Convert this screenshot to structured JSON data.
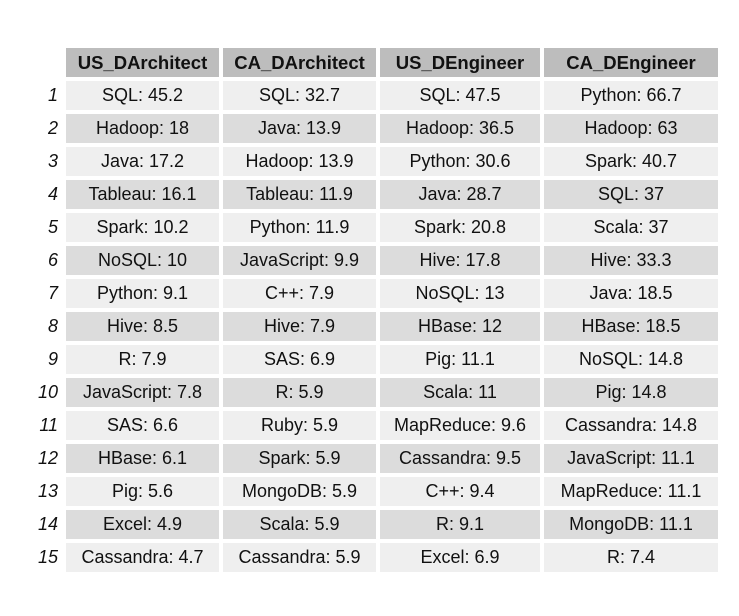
{
  "table": {
    "headers": [
      "US_DArchitect",
      "CA_DArchitect",
      "US_DEngineer",
      "CA_DEngineer"
    ],
    "rows": [
      {
        "rank": "1",
        "cells": [
          "SQL: 45.2",
          "SQL: 32.7",
          "SQL: 47.5",
          "Python: 66.7"
        ]
      },
      {
        "rank": "2",
        "cells": [
          "Hadoop: 18",
          "Java: 13.9",
          "Hadoop: 36.5",
          "Hadoop: 63"
        ]
      },
      {
        "rank": "3",
        "cells": [
          "Java: 17.2",
          "Hadoop: 13.9",
          "Python: 30.6",
          "Spark: 40.7"
        ]
      },
      {
        "rank": "4",
        "cells": [
          "Tableau: 16.1",
          "Tableau: 11.9",
          "Java: 28.7",
          "SQL: 37"
        ]
      },
      {
        "rank": "5",
        "cells": [
          "Spark: 10.2",
          "Python: 11.9",
          "Spark: 20.8",
          "Scala: 37"
        ]
      },
      {
        "rank": "6",
        "cells": [
          "NoSQL: 10",
          "JavaScript: 9.9",
          "Hive: 17.8",
          "Hive: 33.3"
        ]
      },
      {
        "rank": "7",
        "cells": [
          "Python: 9.1",
          "C++: 7.9",
          "NoSQL: 13",
          "Java: 18.5"
        ]
      },
      {
        "rank": "8",
        "cells": [
          "Hive: 8.5",
          "Hive: 7.9",
          "HBase: 12",
          "HBase: 18.5"
        ]
      },
      {
        "rank": "9",
        "cells": [
          "R: 7.9",
          "SAS: 6.9",
          "Pig: 11.1",
          "NoSQL: 14.8"
        ]
      },
      {
        "rank": "10",
        "cells": [
          "JavaScript: 7.8",
          "R: 5.9",
          "Scala: 11",
          "Pig: 14.8"
        ]
      },
      {
        "rank": "11",
        "cells": [
          "SAS: 6.6",
          "Ruby: 5.9",
          "MapReduce: 9.6",
          "Cassandra: 14.8"
        ]
      },
      {
        "rank": "12",
        "cells": [
          "HBase: 6.1",
          "Spark: 5.9",
          "Cassandra: 9.5",
          "JavaScript: 11.1"
        ]
      },
      {
        "rank": "13",
        "cells": [
          "Pig: 5.6",
          "MongoDB: 5.9",
          "C++: 9.4",
          "MapReduce: 11.1"
        ]
      },
      {
        "rank": "14",
        "cells": [
          "Excel: 4.9",
          "Scala: 5.9",
          "R: 9.1",
          "MongoDB: 11.1"
        ]
      },
      {
        "rank": "15",
        "cells": [
          "Cassandra: 4.7",
          "Cassandra: 5.9",
          "Excel: 6.9",
          "R: 7.4"
        ]
      }
    ]
  }
}
